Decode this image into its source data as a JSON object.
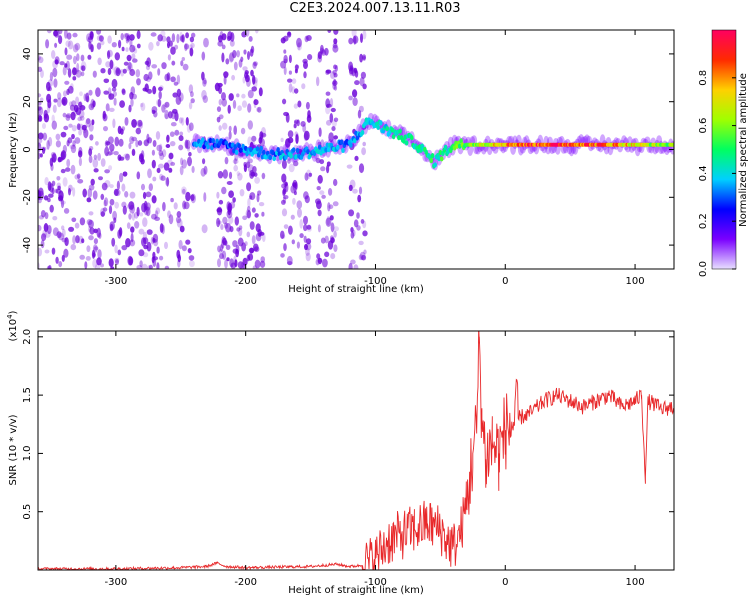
{
  "title": "C2E3.2024.007.13.11.R03",
  "colors": {
    "frame": "#000000",
    "snr_line": "#e8282a",
    "spectrogram_dot": "#6a00d8",
    "colorbar_stops": [
      "#e8e0ff",
      "#7a00ff",
      "#0000ff",
      "#00d0ff",
      "#00ff60",
      "#a0ff00",
      "#ffd000",
      "#ff2a00",
      "#ff0060"
    ]
  },
  "chart_data": [
    {
      "type": "heatmap",
      "name": "spectrogram",
      "title": "C2E3.2024.007.13.11.R03",
      "xlabel": "Height of straight line (km)",
      "ylabel": "Frequency (Hz)",
      "xlim": [
        -360,
        130
      ],
      "ylim": [
        -50,
        50
      ],
      "xticks": [
        -300,
        -200,
        -100,
        0,
        100
      ],
      "yticks": [
        40,
        20,
        0,
        -20,
        -40
      ],
      "colorbar": {
        "label": "Normalized spectral amplitude",
        "range": [
          0,
          1
        ],
        "ticks": [
          0.0,
          0.2,
          0.4,
          0.6,
          0.8
        ]
      },
      "noise_region_km": [
        -360,
        -108
      ],
      "noise_gaps_km": [
        [
          -240,
          -233
        ],
        [
          -230,
          -222
        ],
        [
          -186,
          -172
        ],
        [
          -150,
          -145
        ],
        [
          -130,
          -120
        ]
      ],
      "signal_trace": [
        {
          "x": -240,
          "y": 3,
          "amp": 0.35
        },
        {
          "x": -220,
          "y": 2,
          "amp": 0.3
        },
        {
          "x": -200,
          "y": 0,
          "amp": 0.35
        },
        {
          "x": -180,
          "y": -2,
          "amp": 0.35
        },
        {
          "x": -160,
          "y": -2,
          "amp": 0.4
        },
        {
          "x": -140,
          "y": 0,
          "amp": 0.4
        },
        {
          "x": -120,
          "y": 2,
          "amp": 0.35
        },
        {
          "x": -105,
          "y": 12,
          "amp": 0.4
        },
        {
          "x": -90,
          "y": 8,
          "amp": 0.45
        },
        {
          "x": -70,
          "y": 3,
          "amp": 0.5
        },
        {
          "x": -55,
          "y": -5,
          "amp": 0.5
        },
        {
          "x": -40,
          "y": 2,
          "amp": 0.55
        },
        {
          "x": -20,
          "y": 2,
          "amp": 0.7
        },
        {
          "x": 0,
          "y": 2,
          "amp": 0.9
        },
        {
          "x": 40,
          "y": 2,
          "amp": 1.0
        },
        {
          "x": 80,
          "y": 2,
          "amp": 0.9
        },
        {
          "x": 100,
          "y": 2,
          "amp": 0.75
        },
        {
          "x": 130,
          "y": 2,
          "amp": 0.6
        }
      ]
    },
    {
      "type": "line",
      "name": "snr",
      "xlabel": "Height of straight line (km)",
      "ylabel": "SNR (10 * v/v)",
      "y_multiplier_label": "(x10",
      "y_multiplier_exp": "4",
      "y_multiplier_close": ")",
      "xlim": [
        -360,
        130
      ],
      "ylim": [
        0,
        2.05
      ],
      "xticks": [
        -300,
        -200,
        -100,
        0,
        100
      ],
      "yticks": [
        0.5,
        1.0,
        1.5,
        2.0
      ],
      "ytick_labels": [
        "0.5",
        "1.0",
        "1.5",
        "2.0"
      ],
      "series": [
        {
          "x": [
            -360,
            -300,
            -250,
            -230,
            -222,
            -215,
            -200,
            -150,
            -130,
            -120,
            -110,
            -100,
            -90,
            -80,
            -70,
            -60,
            -50,
            -45,
            -40,
            -35,
            -30,
            -25,
            -22,
            -20,
            -18,
            -15,
            -10,
            -5,
            0,
            10,
            20,
            30,
            40,
            50,
            60,
            70,
            80,
            90,
            100,
            105,
            108,
            110,
            115,
            120,
            130
          ],
          "y": [
            0.01,
            0.01,
            0.02,
            0.03,
            0.06,
            0.03,
            0.02,
            0.03,
            0.05,
            0.03,
            0.04,
            0.1,
            0.25,
            0.3,
            0.35,
            0.4,
            0.35,
            0.25,
            0.2,
            0.3,
            0.55,
            1.0,
            1.2,
            2.0,
            1.3,
            0.95,
            1.1,
            1.0,
            1.2,
            1.3,
            1.35,
            1.45,
            1.5,
            1.45,
            1.4,
            1.45,
            1.5,
            1.4,
            1.45,
            1.5,
            0.8,
            1.45,
            1.42,
            1.38,
            1.4
          ]
        }
      ]
    }
  ]
}
